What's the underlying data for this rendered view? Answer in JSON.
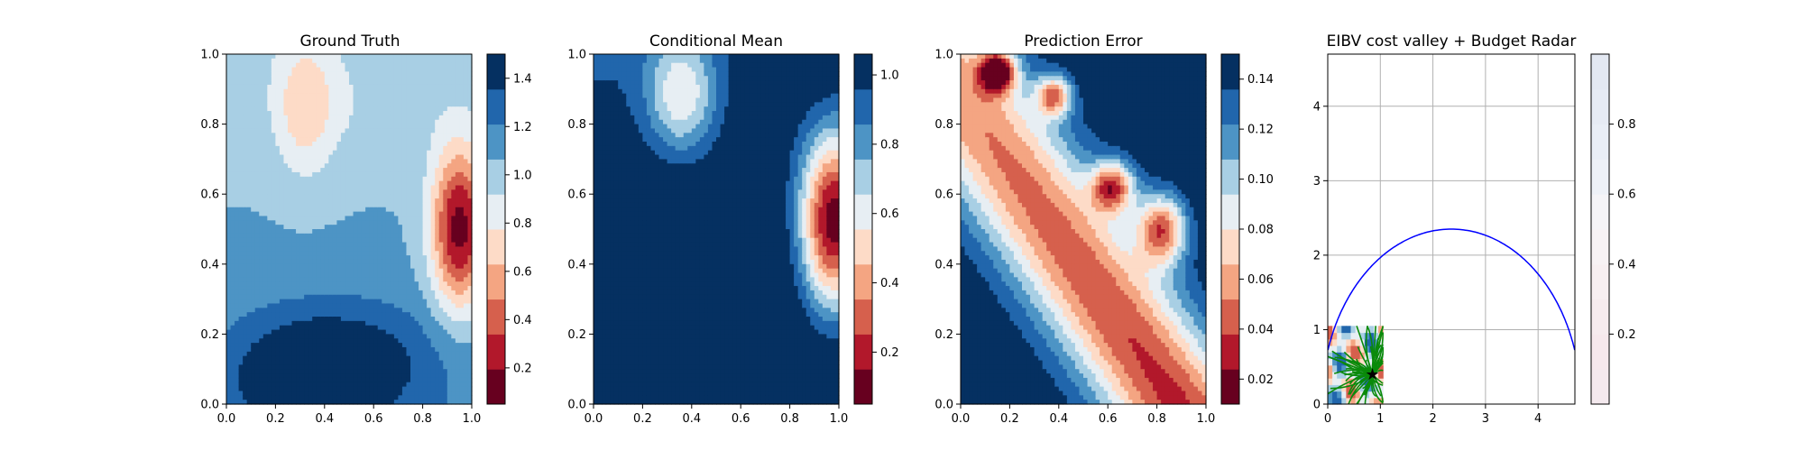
{
  "chart_data": [
    {
      "type": "heatmap",
      "title": "Ground Truth",
      "xlim": [
        0.0,
        1.0
      ],
      "ylim": [
        0.0,
        1.0
      ],
      "x_ticks": [
        "0.0",
        "0.2",
        "0.4",
        "0.6",
        "0.8",
        "1.0"
      ],
      "y_ticks": [
        "0.0",
        "0.2",
        "0.4",
        "0.6",
        "0.8",
        "1.0"
      ],
      "colormap": "RdBu",
      "colorbar": {
        "range": [
          0.05,
          1.5
        ],
        "ticks": [
          "0.2",
          "0.4",
          "0.6",
          "0.8",
          "1.0",
          "1.2",
          "1.4"
        ],
        "tick_values": [
          0.2,
          0.4,
          0.6,
          0.8,
          1.0,
          1.2,
          1.4
        ]
      }
    },
    {
      "type": "heatmap",
      "title": "Conditional Mean",
      "xlim": [
        0.0,
        1.0
      ],
      "ylim": [
        0.0,
        1.0
      ],
      "x_ticks": [
        "0.0",
        "0.2",
        "0.4",
        "0.6",
        "0.8",
        "1.0"
      ],
      "y_ticks": [
        "0.0",
        "0.2",
        "0.4",
        "0.6",
        "0.8",
        "1.0"
      ],
      "colormap": "RdBu",
      "colorbar": {
        "range": [
          0.05,
          1.06
        ],
        "ticks": [
          "0.2",
          "0.4",
          "0.6",
          "0.8",
          "1.0"
        ],
        "tick_values": [
          0.2,
          0.4,
          0.6,
          0.8,
          1.0
        ]
      }
    },
    {
      "type": "heatmap",
      "title": "Prediction Error",
      "xlim": [
        0.0,
        1.0
      ],
      "ylim": [
        0.0,
        1.0
      ],
      "x_ticks": [
        "0.0",
        "0.2",
        "0.4",
        "0.6",
        "0.8",
        "1.0"
      ],
      "y_ticks": [
        "0.0",
        "0.2",
        "0.4",
        "0.6",
        "0.8",
        "1.0"
      ],
      "colormap": "RdBu",
      "colorbar": {
        "range": [
          0.01,
          0.15
        ],
        "ticks": [
          "0.02",
          "0.04",
          "0.06",
          "0.08",
          "0.10",
          "0.12",
          "0.14"
        ],
        "tick_values": [
          0.02,
          0.04,
          0.06,
          0.08,
          0.1,
          0.12,
          0.14
        ]
      }
    },
    {
      "type": "heatmap",
      "title": "EIBV cost valley + Budget Radar",
      "xlim": [
        0,
        4.7
      ],
      "ylim": [
        0,
        4.7
      ],
      "x_ticks": [
        "0",
        "1",
        "2",
        "3",
        "4"
      ],
      "y_ticks": [
        "0",
        "1",
        "2",
        "3",
        "4"
      ],
      "grid": true,
      "colormap": "RdBu",
      "colorbar": {
        "range": [
          0.0,
          1.0
        ],
        "ticks": [
          "0.2",
          "0.4",
          "0.6",
          "0.8"
        ],
        "tick_values": [
          0.2,
          0.4,
          0.6,
          0.8
        ]
      },
      "budget_ellipse": {
        "center": [
          2.35,
          0.0
        ],
        "radius": 2.35,
        "color": "#0000ff"
      },
      "current_location": [
        0.85,
        0.4
      ]
    }
  ]
}
